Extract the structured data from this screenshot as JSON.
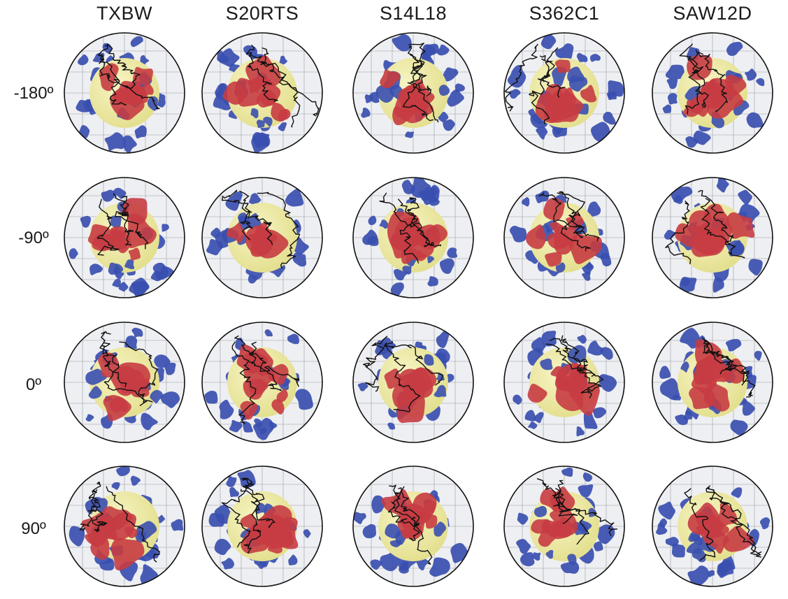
{
  "models": [
    "TXBW",
    "S20RTS",
    "S14L18",
    "S362C1",
    "SAW12D"
  ],
  "longitudes": [
    "-180º",
    "-90º",
    "0º",
    "90º"
  ],
  "colors": {
    "fast_anomaly": "#3a4fb0",
    "slow_anomaly": "#c63c43",
    "core": "#e3df8e",
    "globe_background": "#eeeff2",
    "coastline": "#111111"
  }
}
